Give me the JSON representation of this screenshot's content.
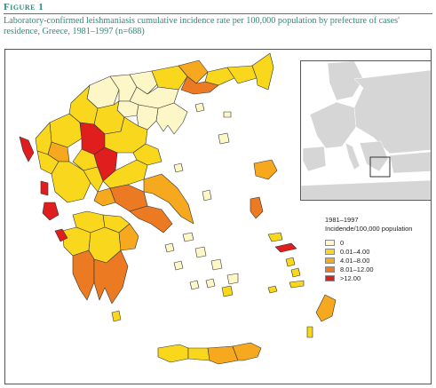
{
  "figure": {
    "label": "Figure 1",
    "caption": "Laboratory-confirmed leishmaniasis cumulative incidence rate per 100,000 population by prefecture of cases' residence, Greece, 1981–1997 (n=688)"
  },
  "legend": {
    "period": "1981–1997",
    "unit": "Incidende/100,000 population",
    "items": [
      {
        "label": "0",
        "color": "#fdf7c8"
      },
      {
        "label": "0.01–4.00",
        "color": "#f9d71c"
      },
      {
        "label": "4.01–8.00",
        "color": "#f6a81e"
      },
      {
        "label": "8.01–12.00",
        "color": "#ec7a22"
      },
      {
        "label": ">12.00",
        "color": "#e01e1e"
      }
    ]
  },
  "colors": {
    "inset_land": "#d6d6d6",
    "inset_highlight_box": "#333333",
    "border": "#555555",
    "accent": "#2f8a7a"
  }
}
